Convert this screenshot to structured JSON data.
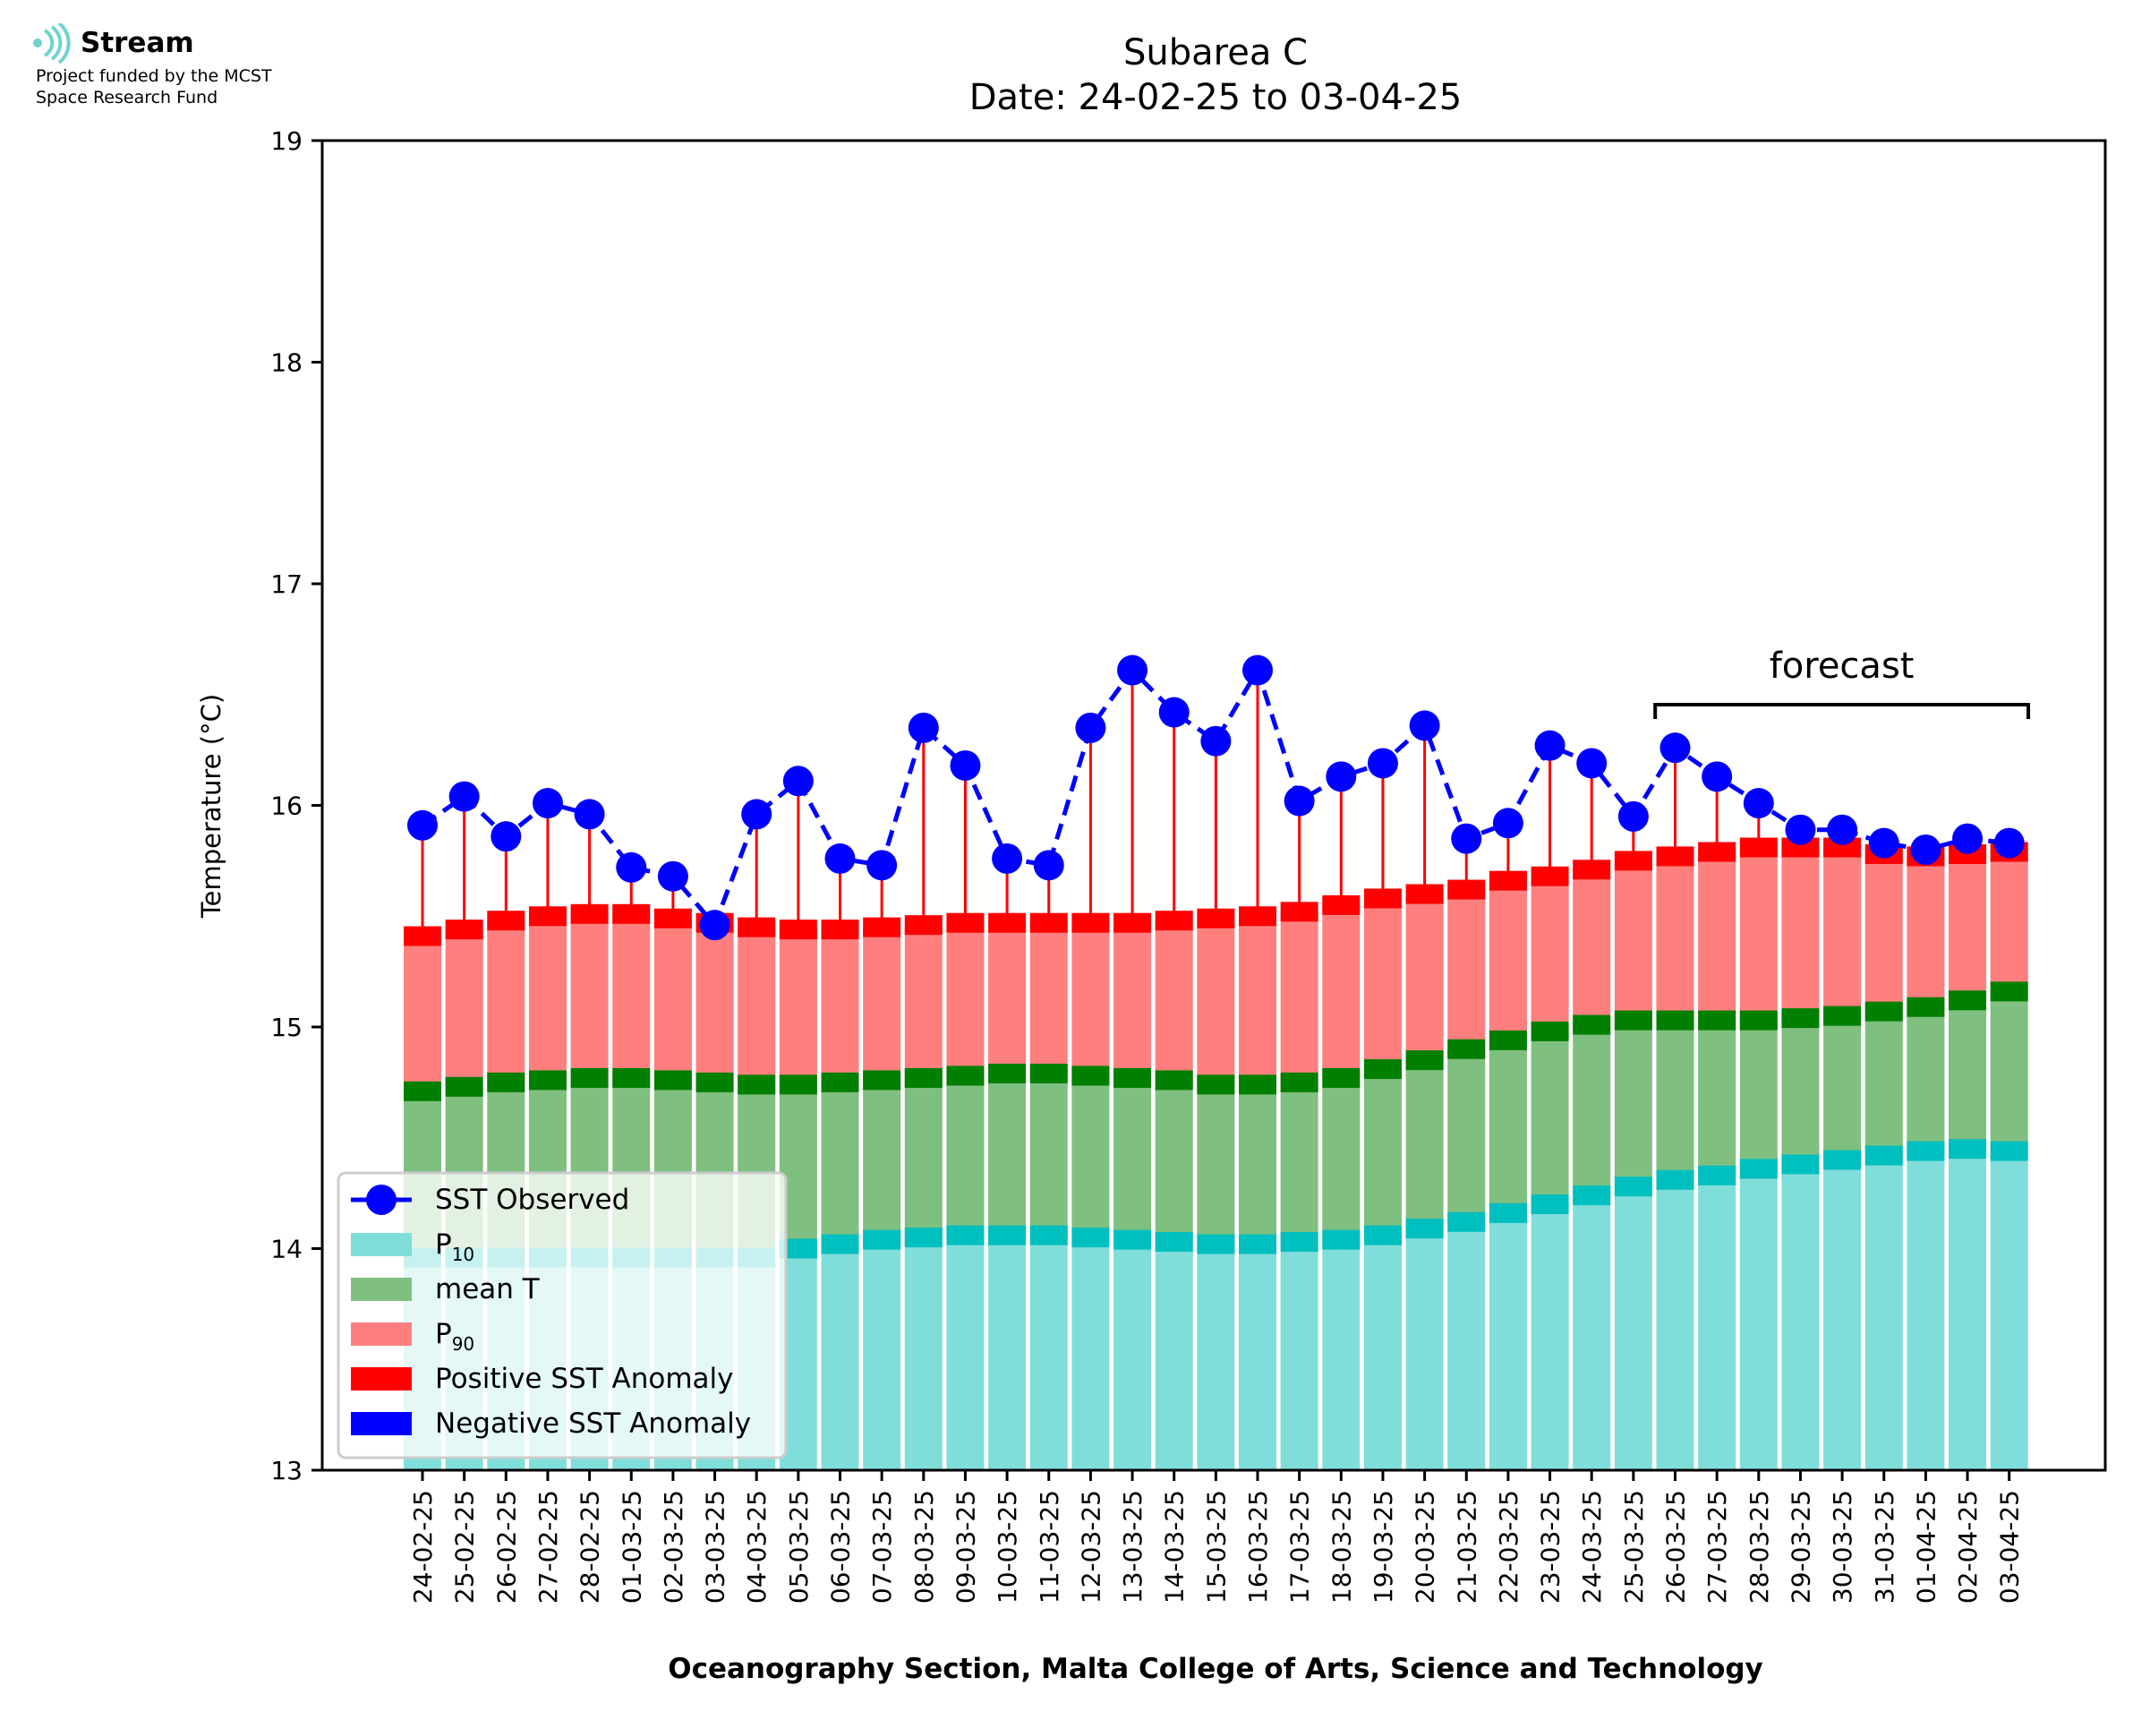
{
  "logo": {
    "name": "Stream",
    "line1": "Project funded by the MCST",
    "line2": "Space Research Fund"
  },
  "chart_data": {
    "type": "bar",
    "title": "Subarea C",
    "subtitle": "Date: 24-02-25 to 03-04-25",
    "xlabel": "Oceanography Section, Malta College of Arts, Science and Technology",
    "ylabel": "Temperature (°C)",
    "ylim": [
      13,
      19
    ],
    "yticks": [
      13,
      14,
      15,
      16,
      17,
      18,
      19
    ],
    "grid": false,
    "legend_position": "lower-left",
    "annotation": "forecast",
    "forecast_range": [
      "26-03-25",
      "03-04-25"
    ],
    "categories": [
      "24-02-25",
      "25-02-25",
      "26-02-25",
      "27-02-25",
      "28-02-25",
      "01-03-25",
      "02-03-25",
      "03-03-25",
      "04-03-25",
      "05-03-25",
      "06-03-25",
      "07-03-25",
      "08-03-25",
      "09-03-25",
      "10-03-25",
      "11-03-25",
      "12-03-25",
      "13-03-25",
      "14-03-25",
      "15-03-25",
      "16-03-25",
      "17-03-25",
      "18-03-25",
      "19-03-25",
      "20-03-25",
      "21-03-25",
      "22-03-25",
      "23-03-25",
      "24-03-25",
      "25-03-25",
      "26-03-25",
      "27-03-25",
      "28-03-25",
      "29-03-25",
      "30-03-25",
      "31-03-25",
      "01-04-25",
      "02-04-25",
      "03-04-25"
    ],
    "series": [
      {
        "name": "SST Observed",
        "color": "#0000ff",
        "values": [
          15.91,
          16.04,
          15.86,
          16.01,
          15.96,
          15.72,
          15.68,
          15.46,
          15.96,
          16.11,
          15.76,
          15.73,
          16.35,
          16.18,
          15.76,
          15.73,
          16.35,
          16.61,
          16.42,
          16.29,
          16.61,
          16.02,
          16.13,
          16.19,
          16.36,
          15.85,
          15.92,
          16.27,
          16.19,
          15.95,
          16.26,
          16.13,
          16.01,
          15.89,
          15.89,
          15.83,
          15.8,
          15.85,
          15.83
        ]
      },
      {
        "name": "P10",
        "color": "#80deda",
        "values": [
          13.96,
          13.96,
          13.96,
          13.96,
          13.96,
          13.96,
          13.96,
          13.96,
          13.96,
          14.0,
          14.02,
          14.04,
          14.05,
          14.06,
          14.06,
          14.06,
          14.05,
          14.04,
          14.03,
          14.02,
          14.02,
          14.03,
          14.04,
          14.06,
          14.09,
          14.12,
          14.16,
          14.2,
          14.24,
          14.28,
          14.31,
          14.33,
          14.36,
          14.38,
          14.4,
          14.42,
          14.44,
          14.45,
          14.44
        ]
      },
      {
        "name": "mean T",
        "color": "#7fbf7f",
        "values": [
          14.71,
          14.73,
          14.75,
          14.76,
          14.77,
          14.77,
          14.76,
          14.75,
          14.74,
          14.74,
          14.75,
          14.76,
          14.77,
          14.78,
          14.79,
          14.79,
          14.78,
          14.77,
          14.76,
          14.74,
          14.74,
          14.75,
          14.77,
          14.81,
          14.85,
          14.9,
          14.94,
          14.98,
          15.01,
          15.03,
          15.03,
          15.03,
          15.03,
          15.04,
          15.05,
          15.07,
          15.09,
          15.12,
          15.16
        ]
      },
      {
        "name": "P90",
        "color": "#ff7f7f",
        "values": [
          15.41,
          15.44,
          15.48,
          15.5,
          15.51,
          15.51,
          15.49,
          15.47,
          15.45,
          15.44,
          15.44,
          15.45,
          15.46,
          15.47,
          15.47,
          15.47,
          15.47,
          15.47,
          15.48,
          15.49,
          15.5,
          15.52,
          15.55,
          15.58,
          15.6,
          15.62,
          15.66,
          15.68,
          15.71,
          15.75,
          15.77,
          15.79,
          15.81,
          15.81,
          15.81,
          15.78,
          15.77,
          15.78,
          15.79
        ]
      }
    ],
    "legend": [
      {
        "label": "SST Observed",
        "kind": "line-marker",
        "color": "#0000ff"
      },
      {
        "label": "P",
        "sub": "10",
        "kind": "patch",
        "color": "#80deda"
      },
      {
        "label": "mean T",
        "kind": "patch",
        "color": "#7fbf7f"
      },
      {
        "label": "P",
        "sub": "90",
        "kind": "patch",
        "color": "#ff7f7f"
      },
      {
        "label": "Positive SST Anomaly",
        "kind": "patch",
        "color": "#ff0000"
      },
      {
        "label": "Negative SST Anomaly",
        "kind": "patch",
        "color": "#0000ff"
      }
    ],
    "colors": {
      "mean_band": "#007f00",
      "p90_band": "#ff0000",
      "p10_band": "#00bfbf",
      "positive_anomaly": "#ff0000",
      "negative_anomaly": "#0000ff"
    }
  }
}
